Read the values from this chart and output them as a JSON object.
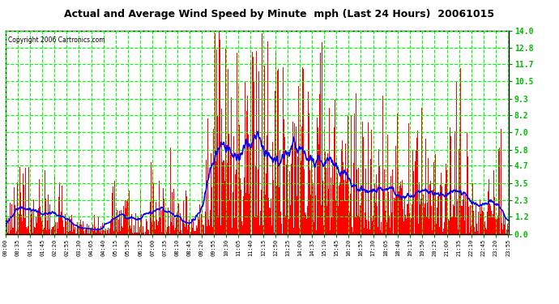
{
  "title": "Actual and Average Wind Speed by Minute  mph (Last 24 Hours)  20061015",
  "copyright": "Copyright 2006 Cartronics.com",
  "yticks": [
    0.0,
    1.2,
    2.3,
    3.5,
    4.7,
    5.8,
    7.0,
    8.2,
    9.3,
    10.5,
    11.7,
    12.8,
    14.0
  ],
  "ylim": [
    0,
    14.0
  ],
  "background_color": "#ffffff",
  "plot_bg_color": "#ffffff",
  "bar_color": "#ff0000",
  "line_color": "#0000ff",
  "grid_color": "#00ff00",
  "x_labels": [
    "00:00",
    "00:35",
    "01:10",
    "01:45",
    "02:20",
    "02:55",
    "03:30",
    "04:05",
    "04:40",
    "05:15",
    "05:50",
    "06:25",
    "07:00",
    "07:35",
    "08:10",
    "08:45",
    "09:20",
    "09:55",
    "10:30",
    "11:05",
    "11:40",
    "12:15",
    "12:50",
    "13:25",
    "14:00",
    "14:35",
    "15:10",
    "15:45",
    "16:20",
    "16:55",
    "17:30",
    "18:05",
    "18:40",
    "19:15",
    "19:50",
    "20:25",
    "21:00",
    "21:35",
    "22:10",
    "22:45",
    "23:20",
    "23:55"
  ],
  "n_minutes": 1440,
  "figwidth": 6.9,
  "figheight": 3.75,
  "dpi": 100
}
